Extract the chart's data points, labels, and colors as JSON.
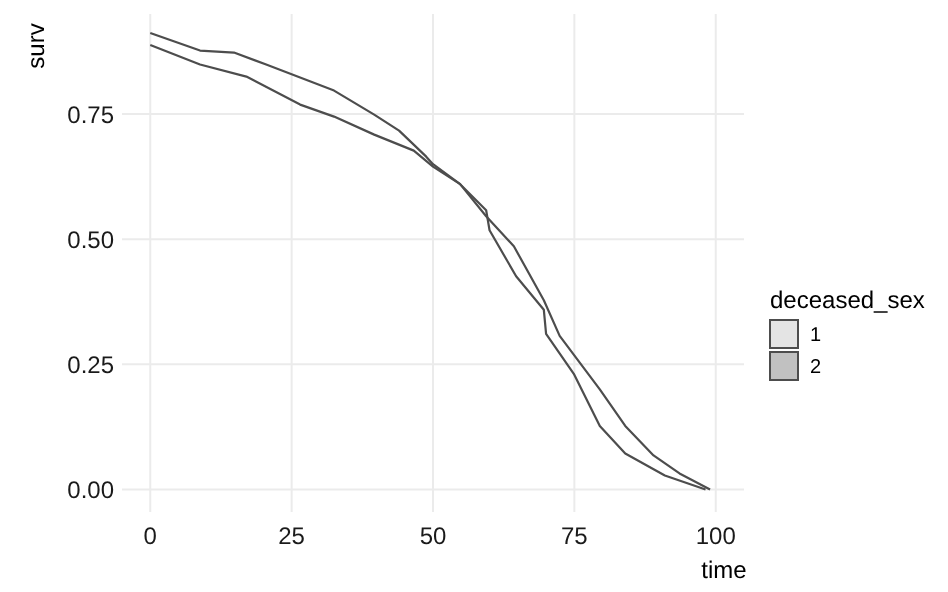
{
  "chart_data": {
    "type": "line",
    "xlabel": "time",
    "ylabel": "surv",
    "legend_title": "deceased_sex",
    "legend": "right",
    "grid": true,
    "xlim": [
      -5,
      105
    ],
    "xticks": [
      0,
      25,
      50,
      75,
      100
    ],
    "ylim": [
      -0.045,
      0.95
    ],
    "yticks": [
      {
        "value": 0,
        "label": "0.00"
      },
      0.25,
      {
        "value": 0.5,
        "label": "0.50"
      },
      0.75
    ],
    "series": [
      {
        "name": "1",
        "color": "#4d4d4d",
        "x": [
          0,
          8.8,
          14.8,
          20.5,
          32.5,
          39.6,
          44,
          48.8,
          50,
          54.8,
          59.4,
          64.3,
          69.6,
          72.4,
          79.5,
          84,
          89,
          93.6,
          99
        ],
        "values": [
          0.912,
          0.877,
          0.873,
          0.849,
          0.797,
          0.749,
          0.717,
          0.665,
          0.65,
          0.61,
          0.546,
          0.486,
          0.378,
          0.307,
          0.2,
          0.127,
          0.068,
          0.032,
          0
        ]
      },
      {
        "name": "2",
        "color": "#4d4d4d",
        "x": [
          0,
          8.8,
          17,
          26.5,
          32.5,
          39.6,
          46.6,
          50,
          54.8,
          59.4,
          60,
          64.7,
          69.6,
          70,
          74.9,
          79.5,
          84,
          91,
          98.2
        ],
        "values": [
          0.888,
          0.849,
          0.825,
          0.769,
          0.745,
          0.709,
          0.677,
          0.645,
          0.61,
          0.558,
          0.518,
          0.426,
          0.359,
          0.311,
          0.231,
          0.127,
          0.072,
          0.028,
          0
        ]
      }
    ]
  }
}
